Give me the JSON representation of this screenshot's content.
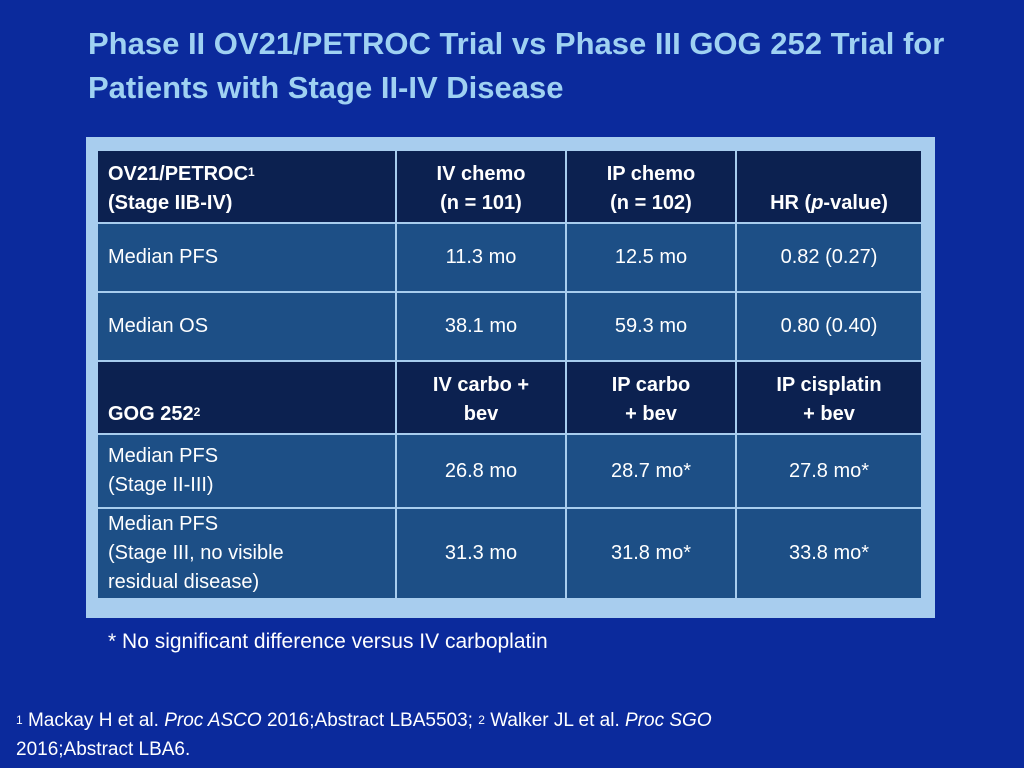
{
  "slide": {
    "title": "Phase II OV21/PETROC Trial vs Phase III GOG 252 Trial for Patients with Stage II-IV Disease"
  },
  "table": {
    "petroc_header": {
      "trial": "OV21/PETROC",
      "trial_sup": "1",
      "stage": "(Stage IIB-IV)",
      "col1_line1": "IV chemo",
      "col1_line2": "(n = 101)",
      "col2_line1": "IP chemo",
      "col2_line2": "(n = 102)",
      "col3_prefix": "HR (",
      "col3_italic": "p",
      "col3_suffix": "-value)"
    },
    "petroc_rows": [
      {
        "label": "Median PFS",
        "v1": "11.3 mo",
        "v2": "12.5 mo",
        "v3": "0.82 (0.27)"
      },
      {
        "label": "Median OS",
        "v1": "38.1 mo",
        "v2": "59.3 mo",
        "v3": "0.80 (0.40)"
      }
    ],
    "gog_header": {
      "trial": "GOG 252",
      "trial_sup": "2",
      "col1_line1": "IV carbo +",
      "col1_line2": "bev",
      "col2_line1": "IP carbo",
      "col2_line2": "+ bev",
      "col3_line1": "IP cisplatin",
      "col3_line2": "+ bev"
    },
    "gog_rows": [
      {
        "label_line1": "Median PFS",
        "label_line2": "(Stage II-III)",
        "v1": "26.8 mo",
        "v2": "28.7 mo*",
        "v3": "27.8 mo*"
      },
      {
        "label_line1": "Median PFS",
        "label_line2": "(Stage III, no visible",
        "label_line3": "residual disease)",
        "v1": "31.3 mo",
        "v2": "31.8 mo*",
        "v3": "33.8 mo*"
      }
    ]
  },
  "footnote": {
    "marker": "*",
    "text": "No significant difference versus IV carboplatin"
  },
  "references": {
    "ref1_sup": "1",
    "ref1_authors": "Mackay H et al.",
    "ref1_journal": "Proc ASCO",
    "ref1_details": "2016;Abstract LBA5503;",
    "ref2_sup": "2",
    "ref2_authors": "Walker JL et al.",
    "ref2_journal": "Proc SGO",
    "ref2_details": "2016;Abstract LBA6."
  }
}
